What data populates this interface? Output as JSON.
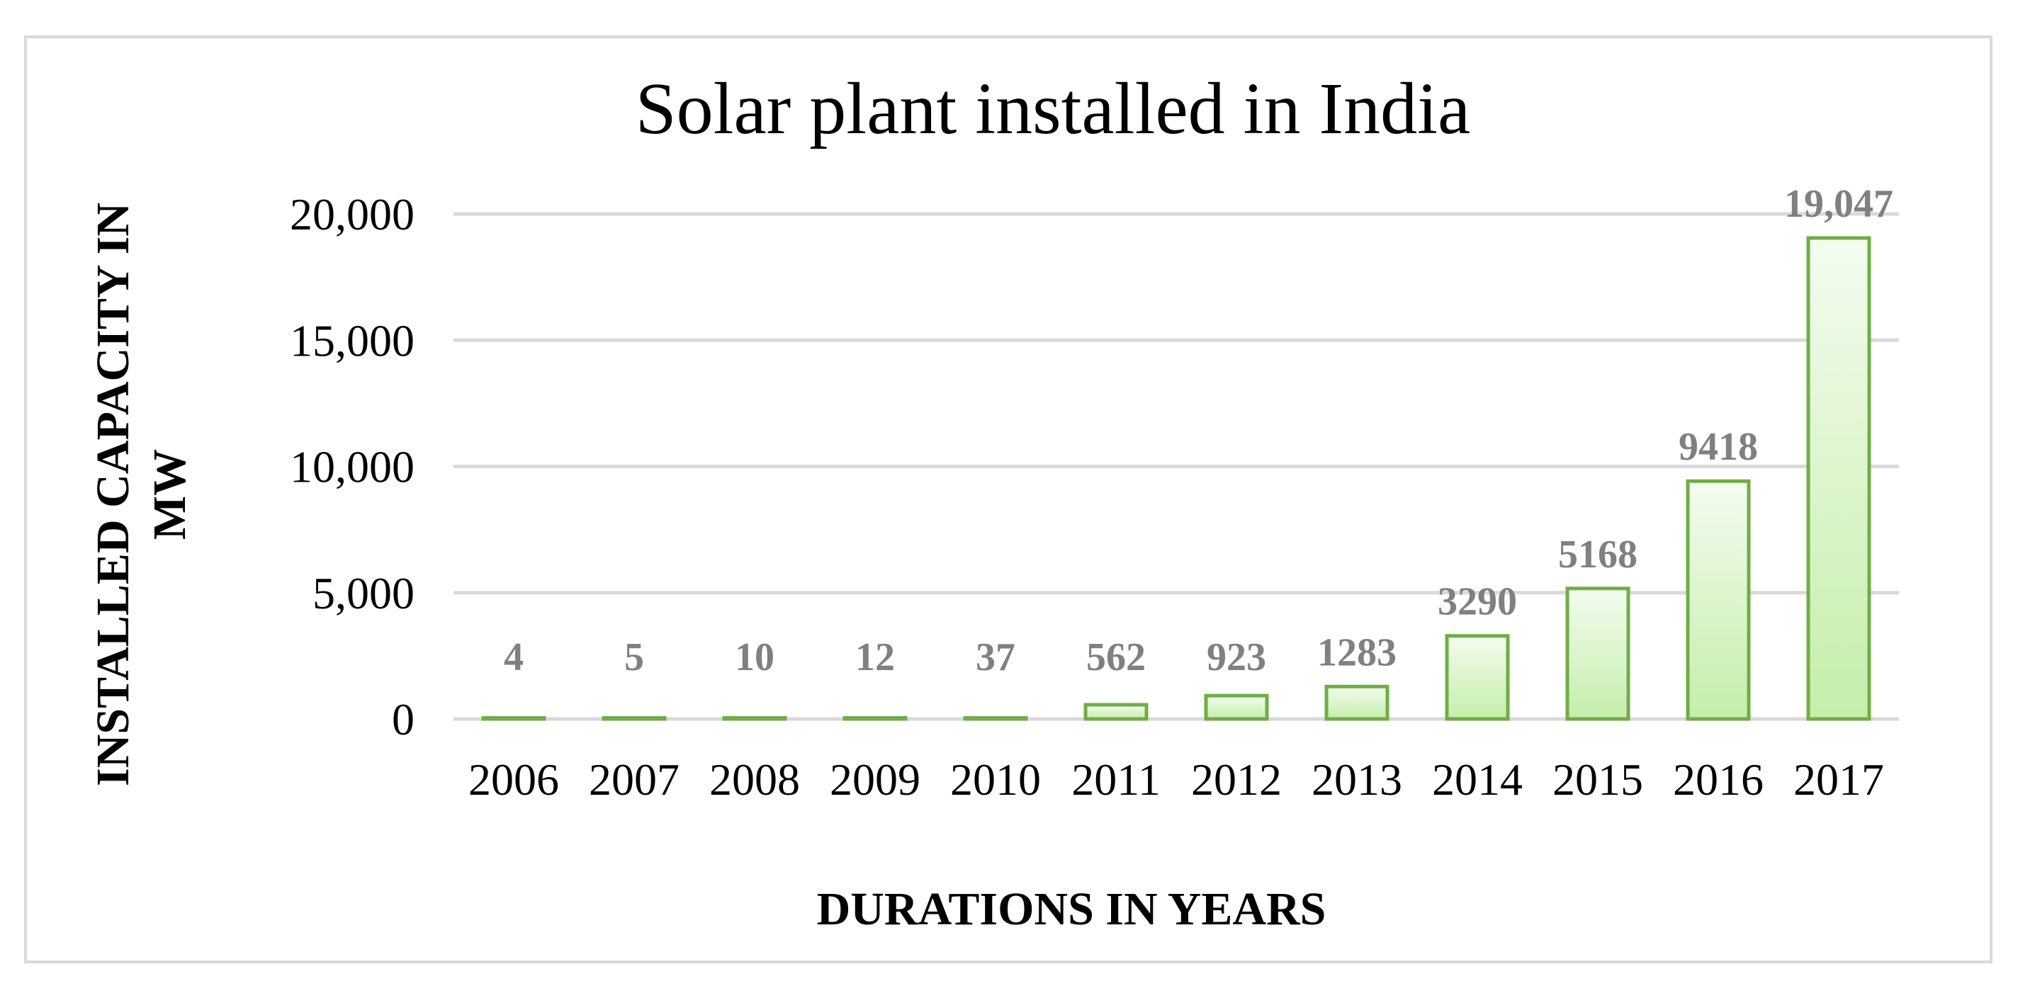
{
  "chart_data": {
    "type": "bar",
    "title": "Solar plant installed in India",
    "xlabel": "DURATIONS IN YEARS",
    "ylabel_lines": [
      "INSTALLED CAPACITY IN",
      "MW"
    ],
    "categories": [
      "2006",
      "2007",
      "2008",
      "2009",
      "2010",
      "2011",
      "2012",
      "2013",
      "2014",
      "2015",
      "2016",
      "2017"
    ],
    "values": [
      4,
      5,
      10,
      12,
      37,
      562,
      923,
      1283,
      3290,
      5168,
      9418,
      19047
    ],
    "data_labels": [
      "4",
      "5",
      "10",
      "12",
      "37",
      "562",
      "923",
      "1283",
      "3290",
      "5168",
      "9418",
      "19,047"
    ],
    "ylim": [
      0,
      20000
    ],
    "yticks": [
      0,
      5000,
      10000,
      15000,
      20000
    ],
    "ytick_labels": [
      "0",
      "5,000",
      "10,000",
      "15,000",
      "20,000"
    ],
    "grid": true,
    "legend": "none",
    "colors": {
      "bar_fill_top": "#f4fcf0",
      "bar_fill_bottom": "#c5eeaa",
      "bar_border": "#70ad47",
      "gridline": "#d9d9d9",
      "data_label": "#808080",
      "frame": "#d9d9d9"
    }
  }
}
